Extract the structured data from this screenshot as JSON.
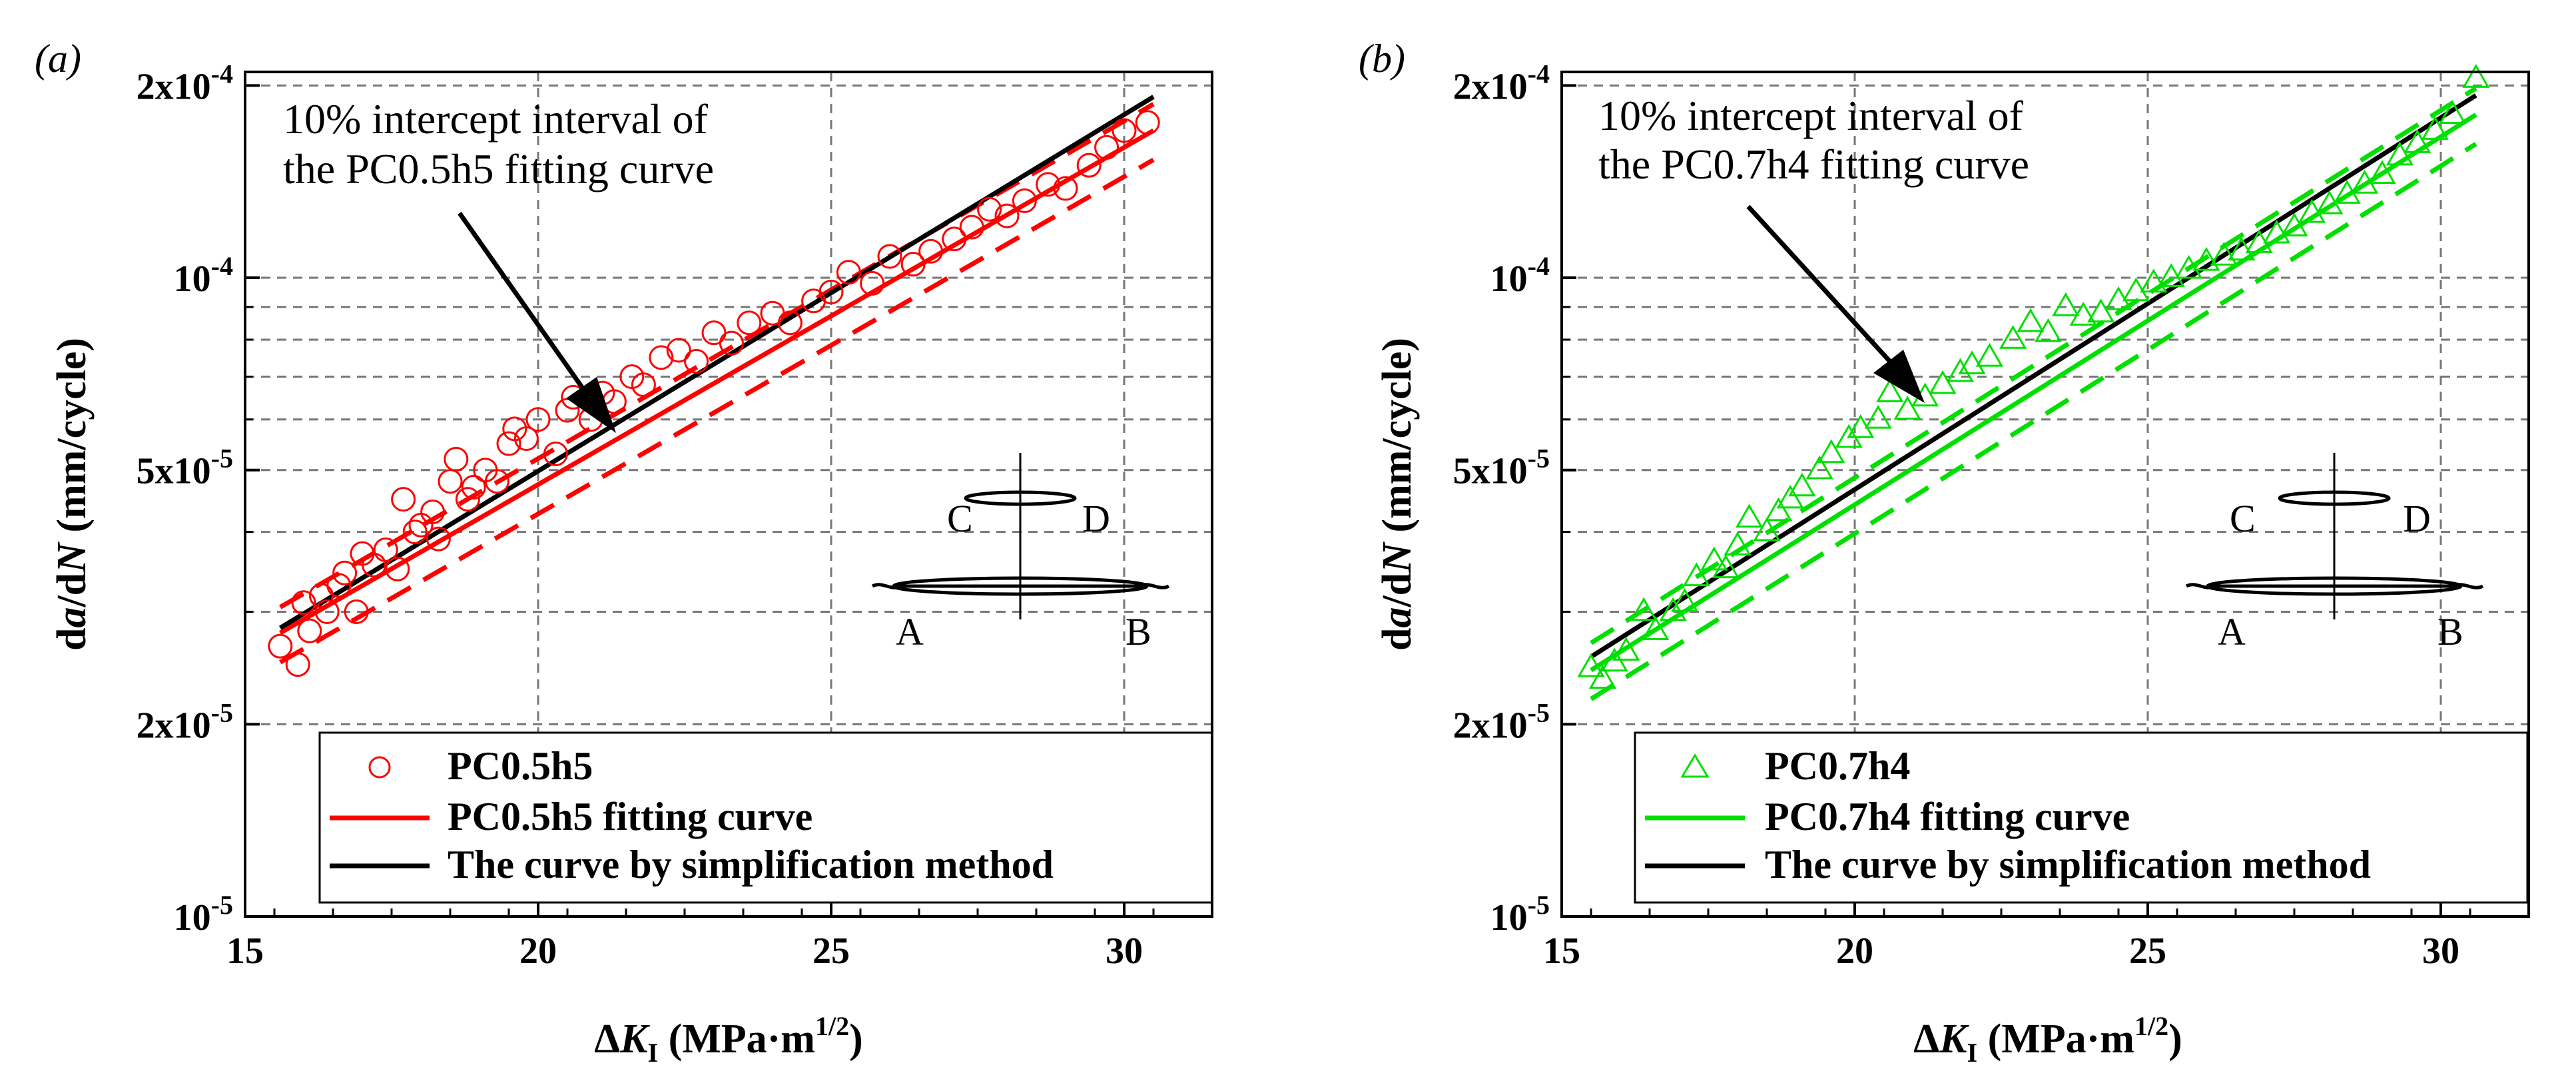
{
  "chart_data": [
    {
      "type": "scatter",
      "panel_label": "(a)",
      "xlabel": "ΔK_I (MPa·m^1/2)",
      "ylabel": "da/dN (mm/cycle)",
      "xlim": [
        15,
        31.5
      ],
      "ylim": [
        1e-05,
        0.00021
      ],
      "yscale": "log",
      "xticks": [
        15,
        20,
        25,
        30
      ],
      "xtick_labels": [
        "15",
        "20",
        "25",
        "30"
      ],
      "yticks": [
        1e-05,
        2e-05,
        5e-05,
        0.0001,
        0.0002
      ],
      "ytick_labels": [
        "10-5",
        "2x10-5",
        "5x10-5",
        "10-4",
        "2x10-4"
      ],
      "grid": true,
      "legend_position": "bottom-right",
      "annotation": "10% intercept interval of the PC0.5h5 fitting curve",
      "annotation_lines": [
        "10% intercept interval of",
        "the PC0.5h5 fitting curve"
      ],
      "inset_labels": [
        "C",
        "D",
        "A",
        "B"
      ],
      "series": [
        {
          "name": "PC0.5h5",
          "kind": "markers",
          "marker": "circle",
          "color": "#ff0000",
          "x": [
            15.6,
            15.9,
            16.0,
            16.1,
            16.3,
            16.4,
            16.6,
            16.7,
            16.9,
            17.0,
            17.2,
            17.4,
            17.6,
            17.7,
            17.9,
            18.0,
            18.2,
            18.3,
            18.5,
            18.6,
            18.8,
            18.9,
            19.1,
            19.3,
            19.5,
            19.6,
            19.8,
            20.0,
            20.3,
            20.5,
            20.6,
            20.9,
            21.1,
            21.3,
            21.6,
            21.8,
            22.1,
            22.4,
            22.7,
            23.0,
            23.3,
            23.6,
            24.0,
            24.3,
            24.7,
            25.0,
            25.3,
            25.7,
            26.0,
            26.4,
            26.7,
            27.1,
            27.4,
            27.7,
            28.0,
            28.3,
            28.7,
            29.0,
            29.4,
            29.7,
            30.0,
            30.4
          ],
          "y": [
            2.65e-05,
            2.48e-05,
            3.1e-05,
            2.8e-05,
            3.18e-05,
            3e-05,
            3.3e-05,
            3.45e-05,
            3e-05,
            3.7e-05,
            3.55e-05,
            3.75e-05,
            3.5e-05,
            4.5e-05,
            4e-05,
            4.1e-05,
            4.3e-05,
            3.9e-05,
            4.8e-05,
            5.2e-05,
            4.5e-05,
            4.7e-05,
            5e-05,
            4.8e-05,
            5.5e-05,
            5.8e-05,
            5.6e-05,
            6e-05,
            5.3e-05,
            6.2e-05,
            6.5e-05,
            6e-05,
            6.6e-05,
            6.4e-05,
            7e-05,
            6.8e-05,
            7.5e-05,
            7.7e-05,
            7.4e-05,
            8.2e-05,
            7.9e-05,
            8.5e-05,
            8.8e-05,
            8.5e-05,
            9.2e-05,
            9.5e-05,
            0.000102,
            9.8e-05,
            0.000108,
            0.000105,
            0.00011,
            0.000115,
            0.00012,
            0.000128,
            0.000125,
            0.000132,
            0.00014,
            0.000138,
            0.00015,
            0.00016,
            0.00017,
            0.000175
          ]
        },
        {
          "name": "PC0.5h5 fitting curve",
          "kind": "line",
          "dash": "solid",
          "color": "#ff0000",
          "x": [
            15.6,
            30.5
          ],
          "y": [
            2.78e-05,
            0.00017
          ]
        },
        {
          "kind": "line",
          "dash": "dashed",
          "color": "#ff0000",
          "x": [
            15.6,
            30.5
          ],
          "y": [
            3.05e-05,
            0.000187
          ]
        },
        {
          "kind": "line",
          "dash": "dashed",
          "color": "#ff0000",
          "x": [
            15.6,
            30.5
          ],
          "y": [
            2.5e-05,
            0.000153
          ]
        },
        {
          "name": "The curve by simplification method",
          "kind": "line",
          "dash": "solid",
          "color": "#000000",
          "x": [
            15.6,
            30.5
          ],
          "y": [
            2.83e-05,
            0.000192
          ]
        }
      ]
    },
    {
      "type": "scatter",
      "panel_label": "(b)",
      "xlabel": "ΔK_I (MPa·m^1/2)",
      "ylabel": "da/dN (mm/cycle)",
      "xlim": [
        15,
        31.5
      ],
      "ylim": [
        1e-05,
        0.00021
      ],
      "yscale": "log",
      "xticks": [
        15,
        20,
        25,
        30
      ],
      "xtick_labels": [
        "15",
        "20",
        "25",
        "30"
      ],
      "yticks": [
        1e-05,
        2e-05,
        5e-05,
        0.0001,
        0.0002
      ],
      "ytick_labels": [
        "10-5",
        "2x10-5",
        "5x10-5",
        "10-4",
        "2x10-4"
      ],
      "grid": true,
      "legend_position": "bottom-right",
      "annotation": "10% intercept interval of the PC0.7h4 fitting curve",
      "annotation_lines": [
        "10% intercept interval of",
        "the PC0.7h4 fitting curve"
      ],
      "inset_labels": [
        "C",
        "D",
        "A",
        "B"
      ],
      "series": [
        {
          "name": "PC0.7h4",
          "kind": "markers",
          "marker": "triangle",
          "color": "#00e000",
          "x": [
            15.5,
            15.7,
            15.9,
            16.1,
            16.4,
            16.6,
            16.9,
            17.1,
            17.3,
            17.6,
            17.8,
            18.0,
            18.2,
            18.5,
            18.7,
            18.9,
            19.1,
            19.4,
            19.6,
            19.9,
            20.1,
            20.4,
            20.6,
            20.9,
            21.2,
            21.5,
            21.8,
            22.0,
            22.3,
            22.7,
            23.0,
            23.3,
            23.6,
            23.9,
            24.2,
            24.5,
            24.8,
            25.1,
            25.4,
            25.7,
            26.0,
            26.3,
            26.6,
            26.9,
            27.2,
            27.5,
            27.8,
            28.1,
            28.4,
            28.7,
            29.0,
            29.3,
            29.6,
            29.9,
            30.2,
            30.6
          ],
          "y": [
            2.45e-05,
            2.35e-05,
            2.5e-05,
            2.6e-05,
            3e-05,
            2.8e-05,
            3e-05,
            3.1e-05,
            3.4e-05,
            3.6e-05,
            3.5e-05,
            3.8e-05,
            4.2e-05,
            4e-05,
            4.3e-05,
            4.5e-05,
            4.7e-05,
            5e-05,
            5.3e-05,
            5.6e-05,
            5.8e-05,
            6e-05,
            6.6e-05,
            6.2e-05,
            6.5e-05,
            6.8e-05,
            7.1e-05,
            7.3e-05,
            7.5e-05,
            8e-05,
            8.5e-05,
            8.2e-05,
            9e-05,
            8.7e-05,
            8.8e-05,
            9.2e-05,
            9.5e-05,
            9.8e-05,
            0.0001,
            0.000103,
            0.000106,
            0.000108,
            0.00011,
            0.000113,
            0.000117,
            0.00012,
            0.000126,
            0.00013,
            0.000135,
            0.00014,
            0.000145,
            0.000155,
            0.000162,
            0.00017,
            0.00018,
            0.000205
          ]
        },
        {
          "name": "PC0.7h4 fitting curve",
          "kind": "line",
          "dash": "solid",
          "color": "#00e000",
          "x": [
            15.5,
            30.6
          ],
          "y": [
            2.43e-05,
            0.00018
          ]
        },
        {
          "kind": "line",
          "dash": "dashed",
          "color": "#00e000",
          "x": [
            15.5,
            30.6
          ],
          "y": [
            2.68e-05,
            0.000198
          ]
        },
        {
          "kind": "line",
          "dash": "dashed",
          "color": "#00e000",
          "x": [
            15.5,
            30.6
          ],
          "y": [
            2.19e-05,
            0.000162
          ]
        },
        {
          "name": "The curve by simplification method",
          "kind": "line",
          "dash": "solid",
          "color": "#000000",
          "x": [
            15.5,
            30.6
          ],
          "y": [
            2.55e-05,
            0.000193
          ]
        }
      ]
    }
  ]
}
